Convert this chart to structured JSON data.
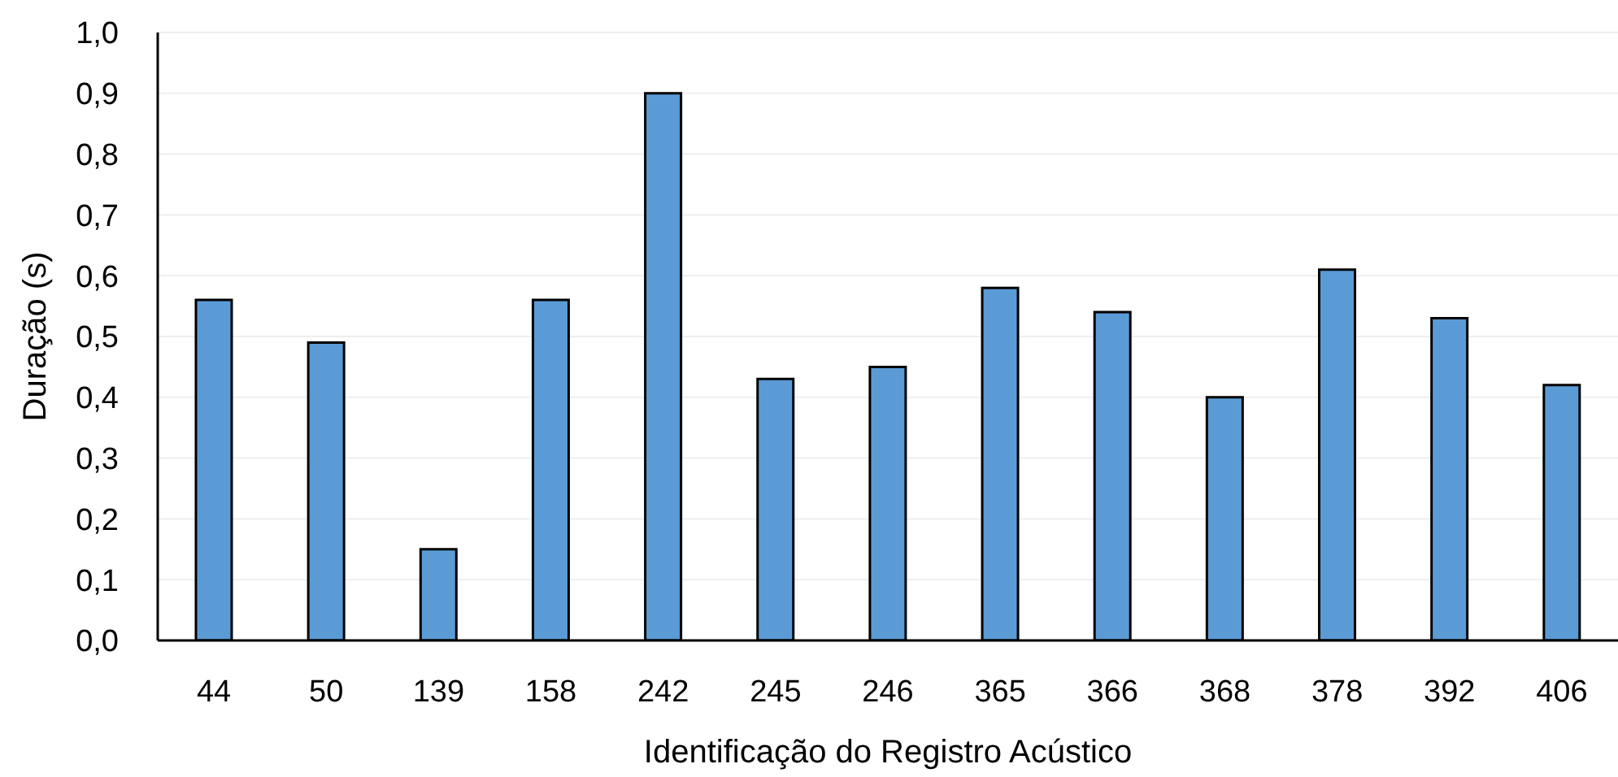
{
  "chart_data": {
    "type": "bar",
    "xlabel": "Identificação do Registro Acústico",
    "ylabel": "Duração (s)",
    "categories": [
      "44",
      "50",
      "139",
      "158",
      "242",
      "245",
      "246",
      "365",
      "366",
      "368",
      "378",
      "392",
      "406"
    ],
    "values": [
      0.56,
      0.49,
      0.15,
      0.56,
      0.9,
      0.43,
      0.45,
      0.58,
      0.54,
      0.4,
      0.61,
      0.53,
      0.42
    ],
    "color": "#5b9bd5",
    "ylim": [
      0,
      1.0
    ],
    "yticks": [
      {
        "value": 0,
        "label": "0,0"
      },
      {
        "value": 0.1,
        "label": "0,1"
      },
      {
        "value": 0.2,
        "label": "0,2"
      },
      {
        "value": 0.3,
        "label": "0,3"
      },
      {
        "value": 0.4,
        "label": "0,4"
      },
      {
        "value": 0.5,
        "label": "0,5"
      },
      {
        "value": 0.6,
        "label": "0,6"
      },
      {
        "value": 0.7,
        "label": "0,7"
      },
      {
        "value": 0.8,
        "label": "0,8"
      },
      {
        "value": 0.9,
        "label": "0,9"
      },
      {
        "value": 1.0,
        "label": "1,0"
      }
    ],
    "grid": "y"
  }
}
